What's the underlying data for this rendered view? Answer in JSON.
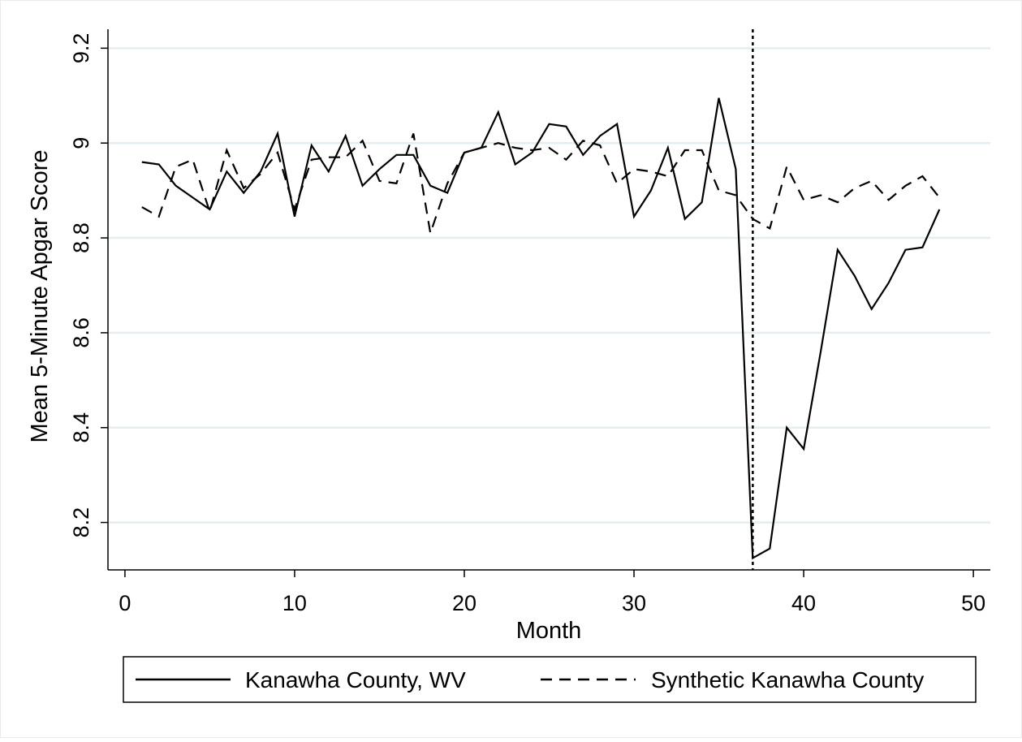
{
  "chart_data": {
    "type": "line",
    "title": "",
    "xlabel": "Month",
    "ylabel": "Mean 5-Minute Apgar Score",
    "xlim": [
      -1,
      51
    ],
    "ylim": [
      8.1,
      9.24
    ],
    "x_ticks": [
      0,
      10,
      20,
      30,
      40,
      50
    ],
    "x_tick_labels": [
      "0",
      "10",
      "20",
      "30",
      "40",
      "50"
    ],
    "y_ticks": [
      8.2,
      8.4,
      8.6,
      8.8,
      9,
      9.2
    ],
    "y_tick_labels": [
      "8.2",
      "8.4",
      "8.6",
      "8.8",
      "9",
      "9.2"
    ],
    "grid": "horizontal",
    "legend_position": "bottom",
    "vertical_reference_line": 37,
    "x": [
      1,
      2,
      3,
      4,
      5,
      6,
      7,
      8,
      9,
      10,
      11,
      12,
      13,
      14,
      15,
      16,
      17,
      18,
      19,
      20,
      21,
      22,
      23,
      24,
      25,
      26,
      27,
      28,
      29,
      30,
      31,
      32,
      33,
      34,
      35,
      36,
      37,
      38,
      39,
      40,
      41,
      42,
      43,
      44,
      45,
      46,
      47,
      48
    ],
    "series": [
      {
        "name": "Kanawha County, WV",
        "line_style": "solid",
        "values": [
          8.96,
          8.955,
          8.91,
          8.885,
          8.86,
          8.94,
          8.895,
          8.94,
          9.02,
          8.845,
          8.995,
          8.94,
          9.015,
          8.91,
          8.945,
          8.975,
          8.975,
          8.91,
          8.895,
          8.98,
          8.99,
          9.065,
          8.955,
          8.98,
          9.04,
          9.035,
          8.975,
          9.015,
          9.04,
          8.845,
          8.9,
          8.99,
          8.84,
          8.875,
          9.095,
          8.945,
          8.125,
          8.145,
          8.4,
          8.355,
          8.56,
          8.775,
          8.72,
          8.65,
          8.705,
          8.775,
          8.78,
          8.86
        ]
      },
      {
        "name": "Synthetic Kanawha County",
        "line_style": "dashed",
        "values": [
          8.865,
          8.845,
          8.95,
          8.965,
          8.855,
          8.985,
          8.905,
          8.935,
          8.98,
          8.86,
          8.965,
          8.97,
          8.97,
          9.005,
          8.92,
          8.915,
          9.02,
          8.81,
          8.915,
          8.98,
          8.99,
          9.0,
          8.99,
          8.985,
          8.99,
          8.965,
          9.005,
          8.995,
          8.915,
          8.945,
          8.94,
          8.93,
          8.985,
          8.985,
          8.9,
          8.89,
          8.84,
          8.82,
          8.95,
          8.88,
          8.89,
          8.875,
          8.905,
          8.92,
          8.88,
          8.91,
          8.93,
          8.885
        ]
      }
    ]
  }
}
